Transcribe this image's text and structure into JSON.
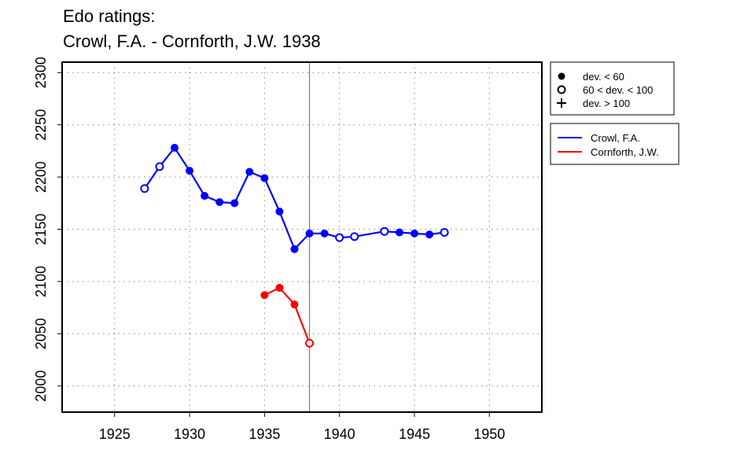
{
  "chart_data": {
    "type": "line",
    "title": "Edo ratings:",
    "subtitle": "Crowl, F.A. - Cornforth, J.W. 1938",
    "xlabel": "",
    "ylabel": "",
    "xlim": [
      1921.5,
      1953.5
    ],
    "ylim": [
      1975,
      2310
    ],
    "x_ticks": [
      1925,
      1930,
      1935,
      1940,
      1945,
      1950
    ],
    "y_ticks": [
      2000,
      2050,
      2100,
      2150,
      2200,
      2250,
      2300
    ],
    "grid": true,
    "reference_line_x": 1938,
    "marker_legend": [
      {
        "label": "dev. < 60",
        "marker": "filled-circle"
      },
      {
        "label": "60 < dev. < 100",
        "marker": "open-circle"
      },
      {
        "label": "dev. > 100",
        "marker": "plus"
      }
    ],
    "series": [
      {
        "name": "Crowl, F.A.",
        "color": "#0000ff",
        "points": [
          {
            "x": 1927,
            "y": 2189,
            "dev": "open"
          },
          {
            "x": 1928,
            "y": 2210,
            "dev": "open"
          },
          {
            "x": 1929,
            "y": 2228,
            "dev": "filled"
          },
          {
            "x": 1930,
            "y": 2206,
            "dev": "filled"
          },
          {
            "x": 1931,
            "y": 2182,
            "dev": "filled"
          },
          {
            "x": 1932,
            "y": 2176,
            "dev": "filled"
          },
          {
            "x": 1933,
            "y": 2175,
            "dev": "filled"
          },
          {
            "x": 1934,
            "y": 2205,
            "dev": "filled"
          },
          {
            "x": 1935,
            "y": 2199,
            "dev": "filled"
          },
          {
            "x": 1936,
            "y": 2167,
            "dev": "filled"
          },
          {
            "x": 1937,
            "y": 2131,
            "dev": "filled"
          },
          {
            "x": 1938,
            "y": 2146,
            "dev": "filled"
          },
          {
            "x": 1939,
            "y": 2146,
            "dev": "filled"
          },
          {
            "x": 1940,
            "y": 2142,
            "dev": "open"
          },
          {
            "x": 1941,
            "y": 2143,
            "dev": "open"
          },
          {
            "x": 1943,
            "y": 2148,
            "dev": "open"
          },
          {
            "x": 1944,
            "y": 2147,
            "dev": "filled"
          },
          {
            "x": 1945,
            "y": 2146,
            "dev": "filled"
          },
          {
            "x": 1946,
            "y": 2145,
            "dev": "filled"
          },
          {
            "x": 1947,
            "y": 2147,
            "dev": "open"
          }
        ]
      },
      {
        "name": "Cornforth, J.W.",
        "color": "#ff0000",
        "points": [
          {
            "x": 1935,
            "y": 2087,
            "dev": "filled"
          },
          {
            "x": 1936,
            "y": 2094,
            "dev": "filled"
          },
          {
            "x": 1937,
            "y": 2078,
            "dev": "filled"
          },
          {
            "x": 1938,
            "y": 2041,
            "dev": "open"
          }
        ]
      }
    ]
  }
}
